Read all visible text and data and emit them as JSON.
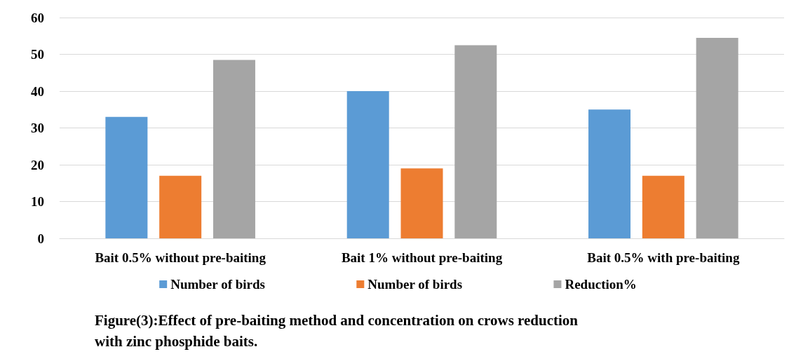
{
  "chart_data": {
    "type": "bar",
    "title": "Figure(3):Effect of pre-baiting method and concentration on crows reduction\nwith zinc phosphide baits.",
    "categories": [
      "Bait 0.5% without pre-baiting",
      "Bait 1% without pre-baiting",
      "Bait 0.5% with pre-baiting"
    ],
    "series": [
      {
        "name": "Number of birds",
        "color": "#5b9bd5",
        "values": [
          33,
          40,
          35
        ]
      },
      {
        "name": "Number of birds",
        "color": "#ed7d31",
        "values": [
          17,
          19,
          17
        ]
      },
      {
        "name": "Reduction%",
        "color": "#a5a5a5",
        "values": [
          48.5,
          52.5,
          54.5
        ]
      }
    ],
    "ylim": [
      0,
      60
    ],
    "yticks": [
      0,
      10,
      20,
      30,
      40,
      50,
      60
    ],
    "grid": "y",
    "legend": "bottom"
  }
}
